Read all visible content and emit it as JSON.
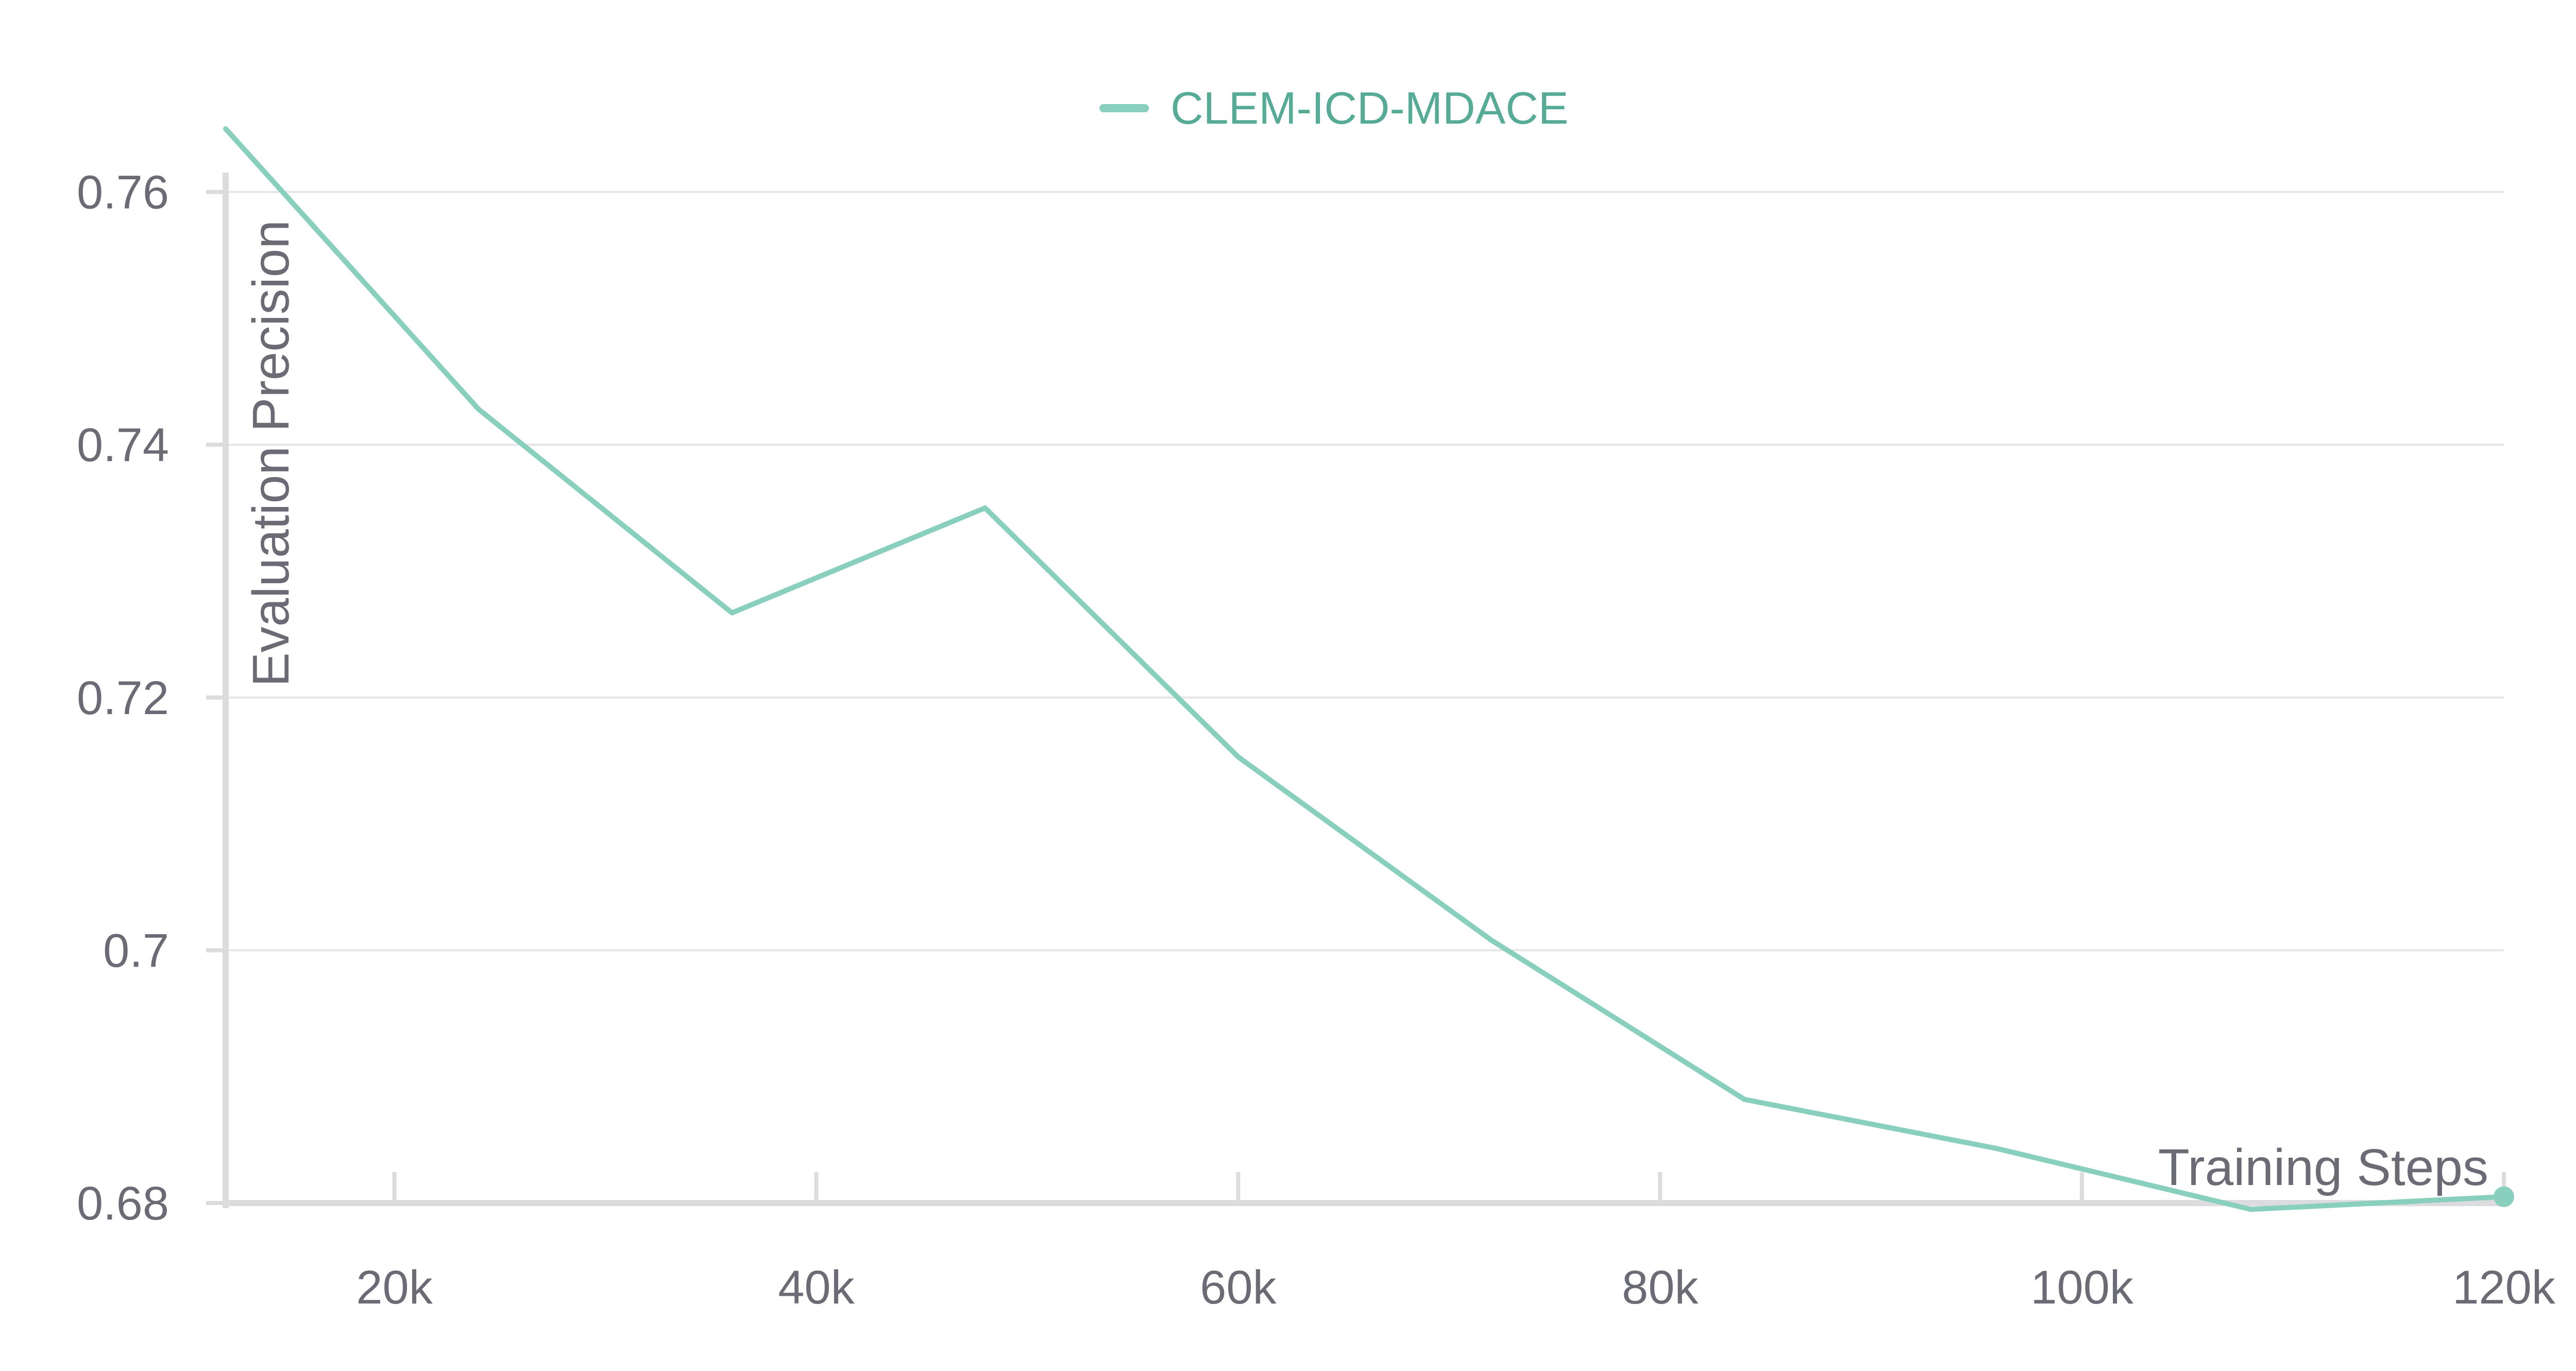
{
  "chart_data": {
    "type": "line",
    "title": "",
    "xlabel": "Training Steps",
    "ylabel": "Evaluation Precision",
    "xlim": [
      12000,
      120000
    ],
    "ylim": [
      0.68,
      0.765
    ],
    "grid": true,
    "legend_position": "top-center",
    "x_ticks": [
      20000,
      40000,
      60000,
      80000,
      100000,
      120000
    ],
    "x_tick_labels": [
      "20k",
      "40k",
      "60k",
      "80k",
      "100k",
      "120k"
    ],
    "y_ticks": [
      0.68,
      0.7,
      0.72,
      0.74,
      0.76
    ],
    "y_tick_labels": [
      "0.68",
      "0.7",
      "0.72",
      "0.74",
      "0.76"
    ],
    "series": [
      {
        "name": "CLEM-ICD-MDACE",
        "color": "#88cfbe",
        "x": [
          12000,
          24000,
          36000,
          48000,
          60000,
          72000,
          84000,
          96000,
          108000,
          120000
        ],
        "y": [
          0.765,
          0.7428,
          0.7267,
          0.735,
          0.7153,
          0.7008,
          0.6882,
          0.6843,
          0.6795,
          0.6805
        ]
      }
    ]
  }
}
